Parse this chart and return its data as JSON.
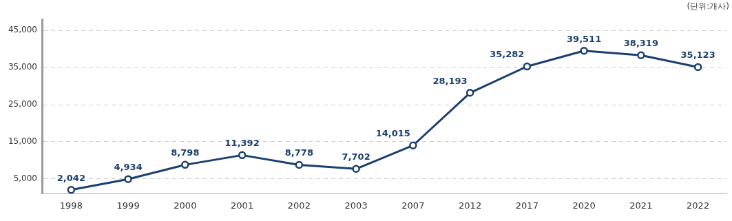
{
  "chart_data": {
    "type": "line",
    "categories": [
      "1998",
      "1999",
      "2000",
      "2001",
      "2002",
      "2003",
      "2007",
      "2012",
      "2017",
      "2020",
      "2021",
      "2022"
    ],
    "series": [
      {
        "color": "#1b3f6e",
        "values": [
          2042,
          4934,
          8798,
          11392,
          8778,
          7702,
          14015,
          28193,
          35282,
          39511,
          38319,
          35123
        ],
        "value_labels": [
          "2,042",
          "4,934",
          "8,798",
          "11,392",
          "8,778",
          "7,702",
          "14,015",
          "28,193",
          "35,282",
          "39,511",
          "38,319",
          "35,123"
        ]
      }
    ],
    "ylim": [
      1000,
      48000
    ],
    "yticks": [
      {
        "value": 5000,
        "label": "5,000"
      },
      {
        "value": 15000,
        "label": "15,000"
      },
      {
        "value": 25000,
        "label": "25,000"
      },
      {
        "value": 35000,
        "label": "35,000"
      },
      {
        "value": 45000,
        "label": "45,000"
      }
    ],
    "grid": "y",
    "line_style": "solid",
    "marker": "circle",
    "legend": false,
    "annotations": [
      "(단위:개사)"
    ]
  }
}
